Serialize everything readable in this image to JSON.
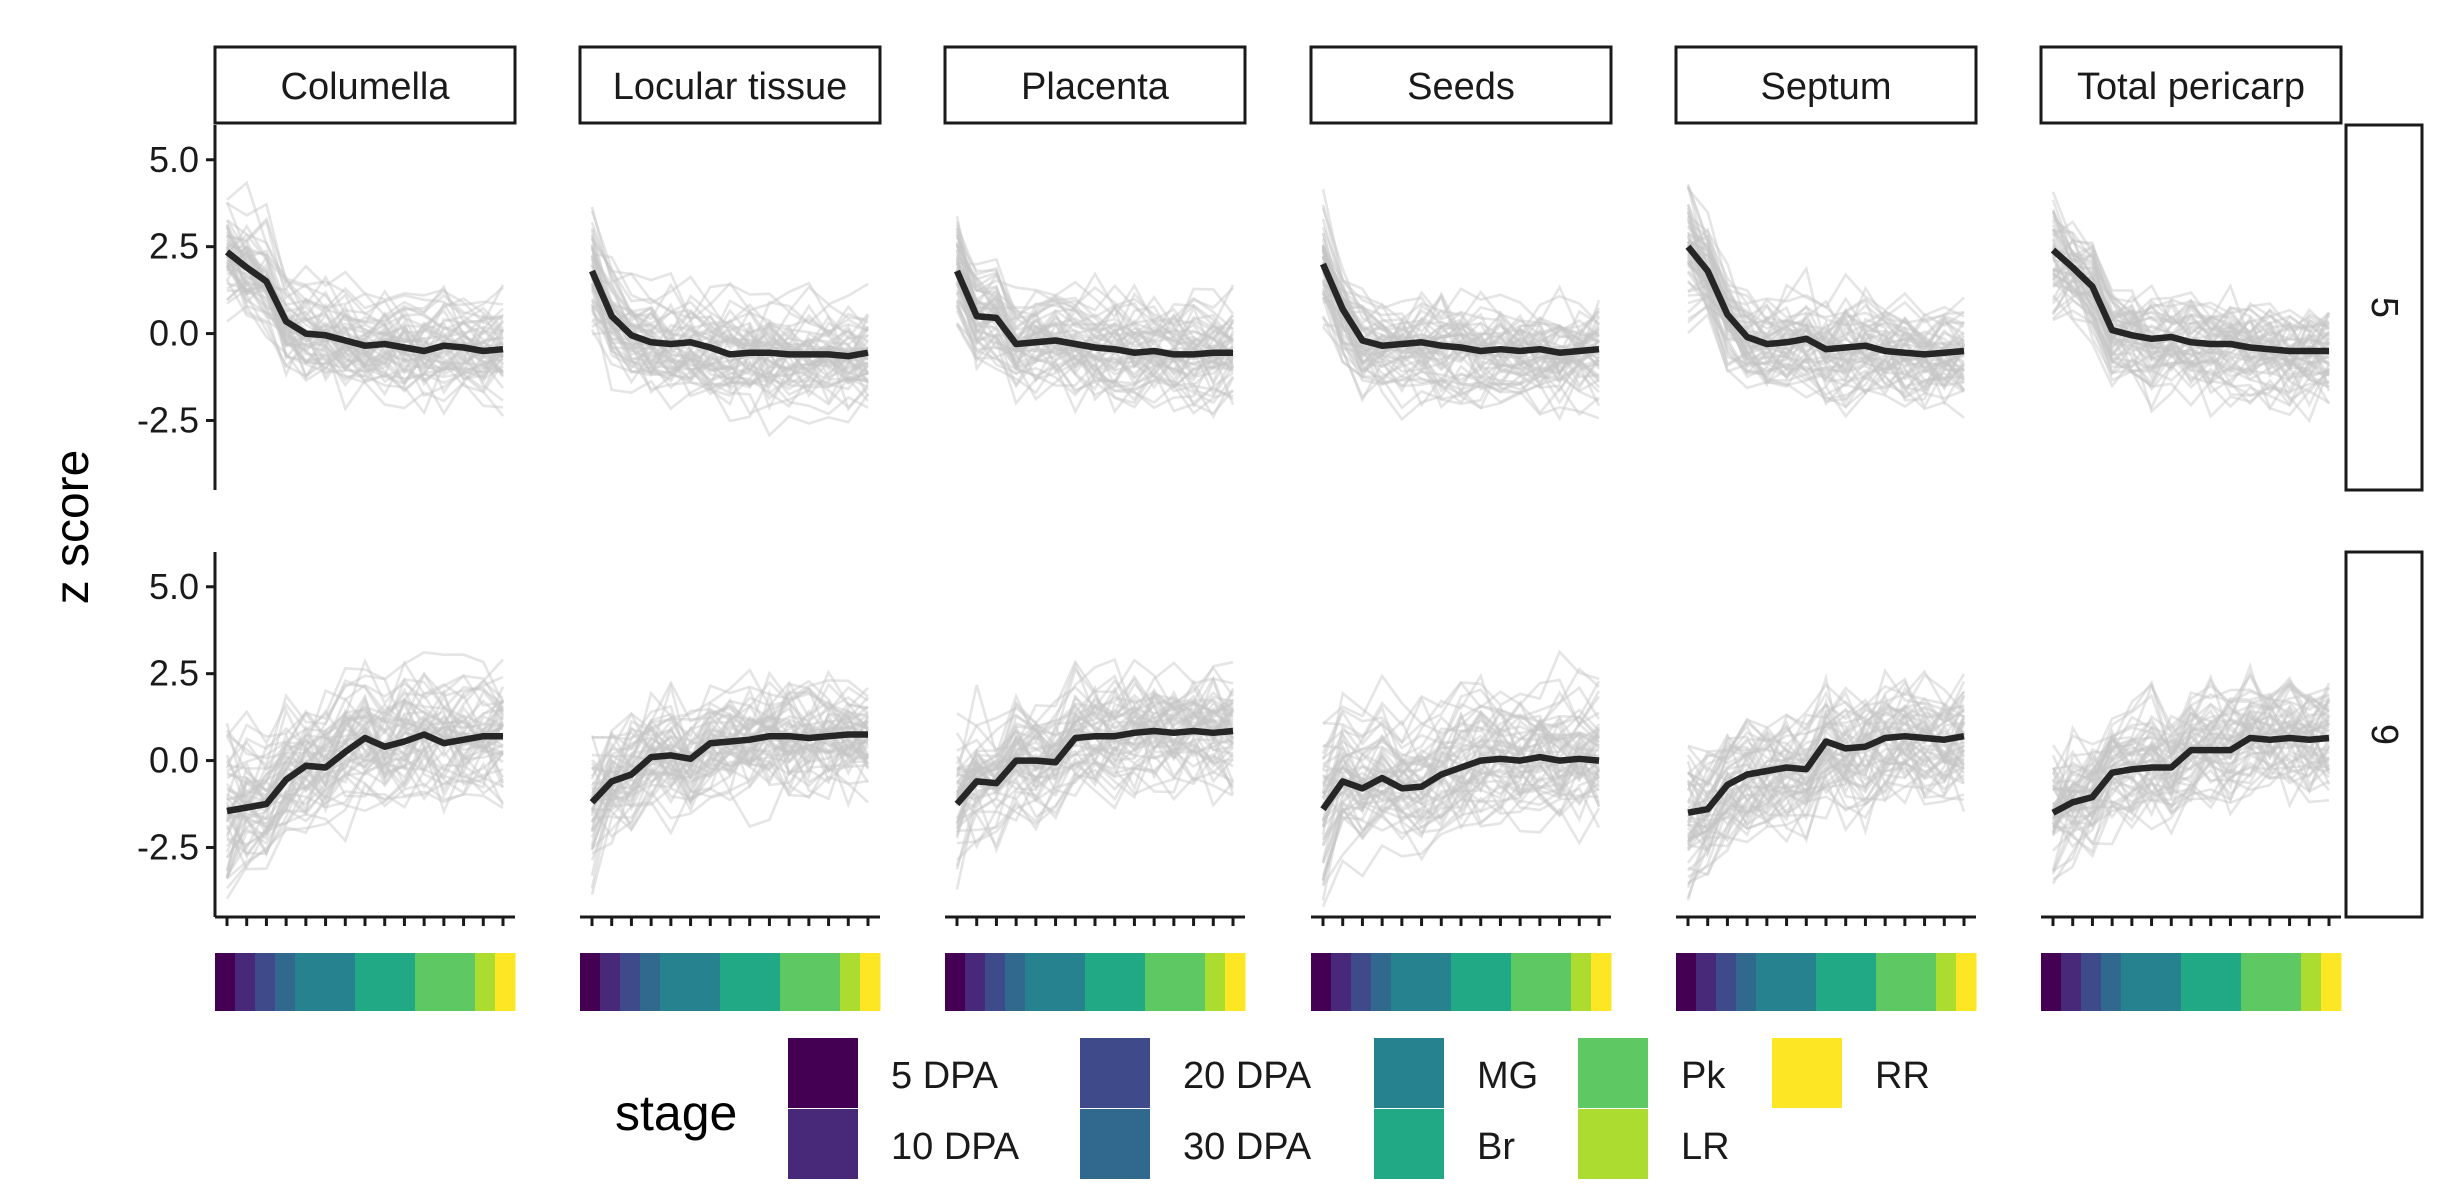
{
  "chart_data": {
    "type": "line",
    "ylabel": "z score",
    "ylim": [
      -4.5,
      6
    ],
    "yticks": [
      5.0,
      2.5,
      0.0,
      -2.5
    ],
    "ytick_labels": [
      "5.0",
      "2.5",
      "0.0",
      "-2.5"
    ],
    "tissues": [
      "Columella",
      "Locular tissue",
      "Placenta",
      "Seeds",
      "Septum",
      "Total pericarp"
    ],
    "clusters": [
      "5",
      "9"
    ],
    "n_timepoints": 15,
    "mean_line_color": "#262626",
    "background_line_color": "#bdbdbd",
    "legend": {
      "title": "stage",
      "entries": [
        {
          "label": "5 DPA",
          "color": "#440154"
        },
        {
          "label": "10 DPA",
          "color": "#482878"
        },
        {
          "label": "20 DPA",
          "color": "#3E4A89"
        },
        {
          "label": "30 DPA",
          "color": "#31688E"
        },
        {
          "label": "MG",
          "color": "#26828E"
        },
        {
          "label": "Br",
          "color": "#21A884"
        },
        {
          "label": "Pk",
          "color": "#5EC962"
        },
        {
          "label": "LR",
          "color": "#ADDC30"
        },
        {
          "label": "RR",
          "color": "#FDE725"
        }
      ]
    },
    "stage_bar": [
      {
        "stage": "5 DPA",
        "n": 1
      },
      {
        "stage": "10 DPA",
        "n": 1
      },
      {
        "stage": "20 DPA",
        "n": 1
      },
      {
        "stage": "30 DPA",
        "n": 1
      },
      {
        "stage": "MG",
        "n": 3
      },
      {
        "stage": "Br",
        "n": 3
      },
      {
        "stage": "Pk",
        "n": 3
      },
      {
        "stage": "LR",
        "n": 1
      },
      {
        "stage": "RR",
        "n": 1
      }
    ],
    "panels": [
      {
        "cluster": "5",
        "tissue": "Columella",
        "mean": [
          2.35,
          1.9,
          1.5,
          0.35,
          0.0,
          -0.05,
          -0.2,
          -0.35,
          -0.3,
          -0.4,
          -0.5,
          -0.35,
          -0.4,
          -0.5,
          -0.45
        ],
        "spread": 0.9
      },
      {
        "cluster": "5",
        "tissue": "Locular tissue",
        "mean": [
          1.8,
          0.5,
          -0.05,
          -0.25,
          -0.3,
          -0.25,
          -0.4,
          -0.6,
          -0.55,
          -0.55,
          -0.6,
          -0.6,
          -0.6,
          -0.65,
          -0.55
        ],
        "spread": 0.9
      },
      {
        "cluster": "5",
        "tissue": "Placenta",
        "mean": [
          1.8,
          0.5,
          0.45,
          -0.3,
          -0.25,
          -0.2,
          -0.3,
          -0.4,
          -0.45,
          -0.55,
          -0.5,
          -0.6,
          -0.6,
          -0.55,
          -0.55
        ],
        "spread": 0.9
      },
      {
        "cluster": "5",
        "tissue": "Seeds",
        "mean": [
          2.0,
          0.7,
          -0.2,
          -0.35,
          -0.3,
          -0.25,
          -0.35,
          -0.4,
          -0.5,
          -0.45,
          -0.5,
          -0.45,
          -0.55,
          -0.5,
          -0.45
        ],
        "spread": 0.9
      },
      {
        "cluster": "5",
        "tissue": "Septum",
        "mean": [
          2.5,
          1.8,
          0.55,
          -0.1,
          -0.3,
          -0.25,
          -0.15,
          -0.45,
          -0.4,
          -0.35,
          -0.5,
          -0.55,
          -0.6,
          -0.55,
          -0.5
        ],
        "spread": 0.9
      },
      {
        "cluster": "5",
        "tissue": "Total pericarp",
        "mean": [
          2.4,
          1.9,
          1.35,
          0.1,
          -0.05,
          -0.15,
          -0.1,
          -0.25,
          -0.3,
          -0.3,
          -0.4,
          -0.45,
          -0.5,
          -0.5,
          -0.5
        ],
        "spread": 0.9
      },
      {
        "cluster": "9",
        "tissue": "Columella",
        "mean": [
          -1.45,
          -1.35,
          -1.25,
          -0.55,
          -0.15,
          -0.2,
          0.25,
          0.65,
          0.4,
          0.55,
          0.75,
          0.5,
          0.6,
          0.7,
          0.7
        ],
        "spread": 1.1
      },
      {
        "cluster": "9",
        "tissue": "Locular tissue",
        "mean": [
          -1.2,
          -0.6,
          -0.4,
          0.1,
          0.15,
          0.05,
          0.5,
          0.55,
          0.6,
          0.7,
          0.7,
          0.65,
          0.7,
          0.75,
          0.75
        ],
        "spread": 1.1
      },
      {
        "cluster": "9",
        "tissue": "Placenta",
        "mean": [
          -1.25,
          -0.6,
          -0.65,
          0.0,
          0.0,
          -0.05,
          0.65,
          0.7,
          0.7,
          0.8,
          0.85,
          0.8,
          0.85,
          0.8,
          0.85
        ],
        "spread": 1.1
      },
      {
        "cluster": "9",
        "tissue": "Seeds",
        "mean": [
          -1.4,
          -0.6,
          -0.8,
          -0.5,
          -0.8,
          -0.75,
          -0.4,
          -0.2,
          0.0,
          0.05,
          0.0,
          0.1,
          0.0,
          0.05,
          0.0
        ],
        "spread": 1.1
      },
      {
        "cluster": "9",
        "tissue": "Septum",
        "mean": [
          -1.5,
          -1.4,
          -0.7,
          -0.4,
          -0.3,
          -0.2,
          -0.25,
          0.55,
          0.35,
          0.4,
          0.65,
          0.7,
          0.65,
          0.6,
          0.7
        ],
        "spread": 1.1
      },
      {
        "cluster": "9",
        "tissue": "Total pericarp",
        "mean": [
          -1.5,
          -1.2,
          -1.05,
          -0.35,
          -0.25,
          -0.2,
          -0.2,
          0.3,
          0.3,
          0.3,
          0.65,
          0.6,
          0.65,
          0.6,
          0.65
        ],
        "spread": 1.1
      }
    ]
  }
}
